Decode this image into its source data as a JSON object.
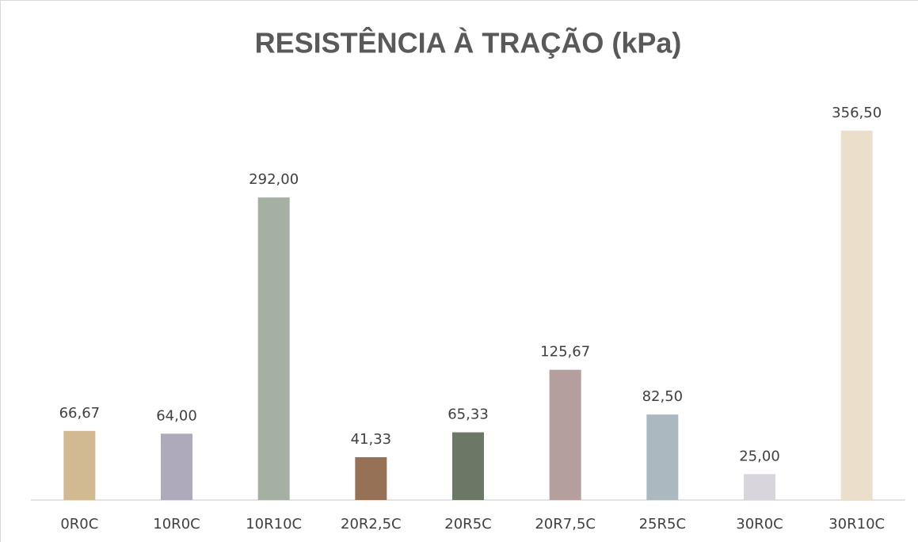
{
  "chart_data": {
    "type": "bar",
    "title": "RESISTÊNCIA À TRAÇÃO (kPa)",
    "categories": [
      "0R0C",
      "10R0C",
      "10R10C",
      "20R2,5C",
      "20R5C",
      "20R7,5C",
      "25R5C",
      "30R0C",
      "30R10C"
    ],
    "values": [
      66.67,
      64.0,
      292.0,
      41.33,
      65.33,
      125.67,
      82.5,
      25.0,
      356.5
    ],
    "value_labels": [
      "66,67",
      "64,00",
      "292,00",
      "41,33",
      "65,33",
      "125,67",
      "82,50",
      "25,00",
      "356,50"
    ],
    "colors": [
      "#d1b991",
      "#aeaabb",
      "#a6b0a2",
      "#977156",
      "#6c7866",
      "#b59e9e",
      "#abb8c0",
      "#d8d5dc",
      "#ebdfcb"
    ],
    "ylim": [
      0,
      400
    ]
  }
}
